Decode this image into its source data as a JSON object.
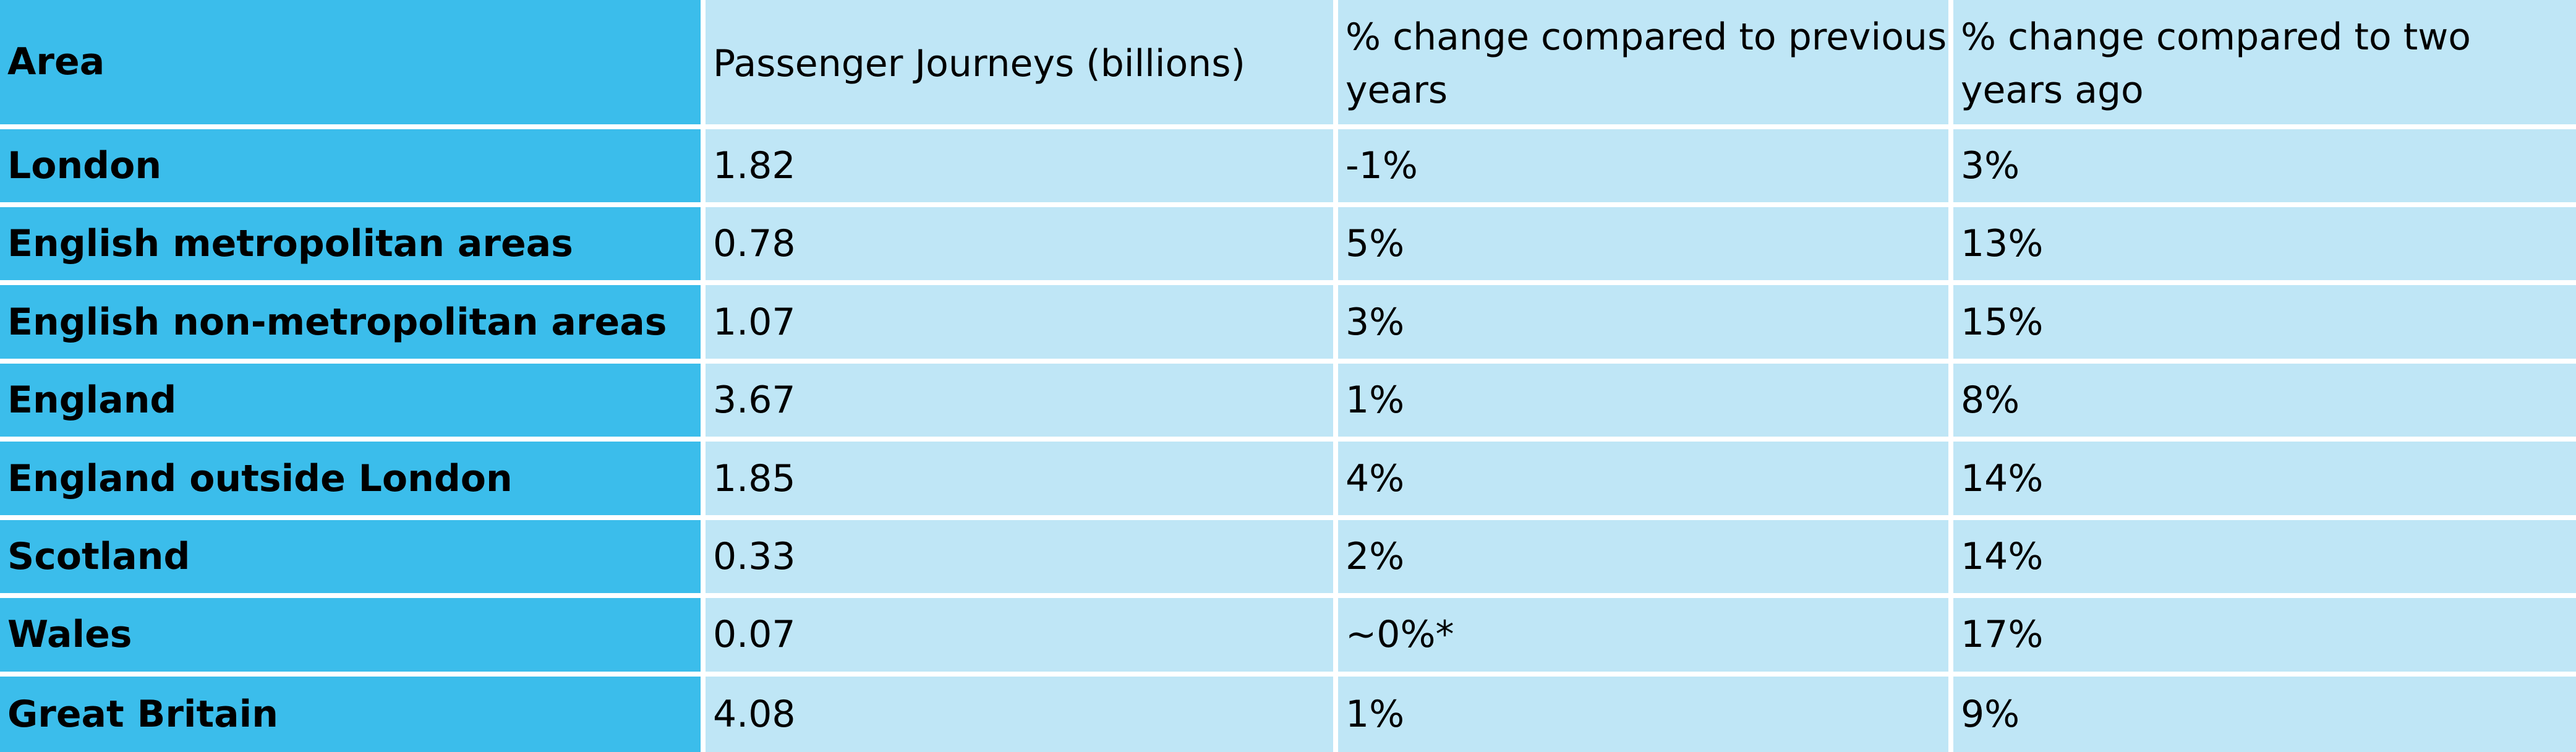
{
  "table": {
    "headers": [
      "Area",
      "Passenger Journeys (billions)",
      "% change compared to previous years",
      "% change compared to two years ago"
    ],
    "rows": [
      [
        "London",
        "1.82",
        "-1%",
        "3%"
      ],
      [
        "English metropolitan areas",
        "0.78",
        "5%",
        "13%"
      ],
      [
        "English non-metropolitan areas",
        "1.07",
        "3%",
        "15%"
      ],
      [
        "England",
        "3.67",
        "1%",
        "8%"
      ],
      [
        "England outside London",
        "1.85",
        "4%",
        "14%"
      ],
      [
        "Scotland",
        "0.33",
        "2%",
        "14%"
      ],
      [
        "Wales",
        "0.07",
        "~0%*",
        "17%"
      ],
      [
        "Great Britain",
        "4.08",
        "1%",
        "9%"
      ]
    ]
  },
  "colors": {
    "area_column": "#3bbdeb",
    "value_cells": "#bfe6f6",
    "grid_lines": "#ffffff"
  }
}
